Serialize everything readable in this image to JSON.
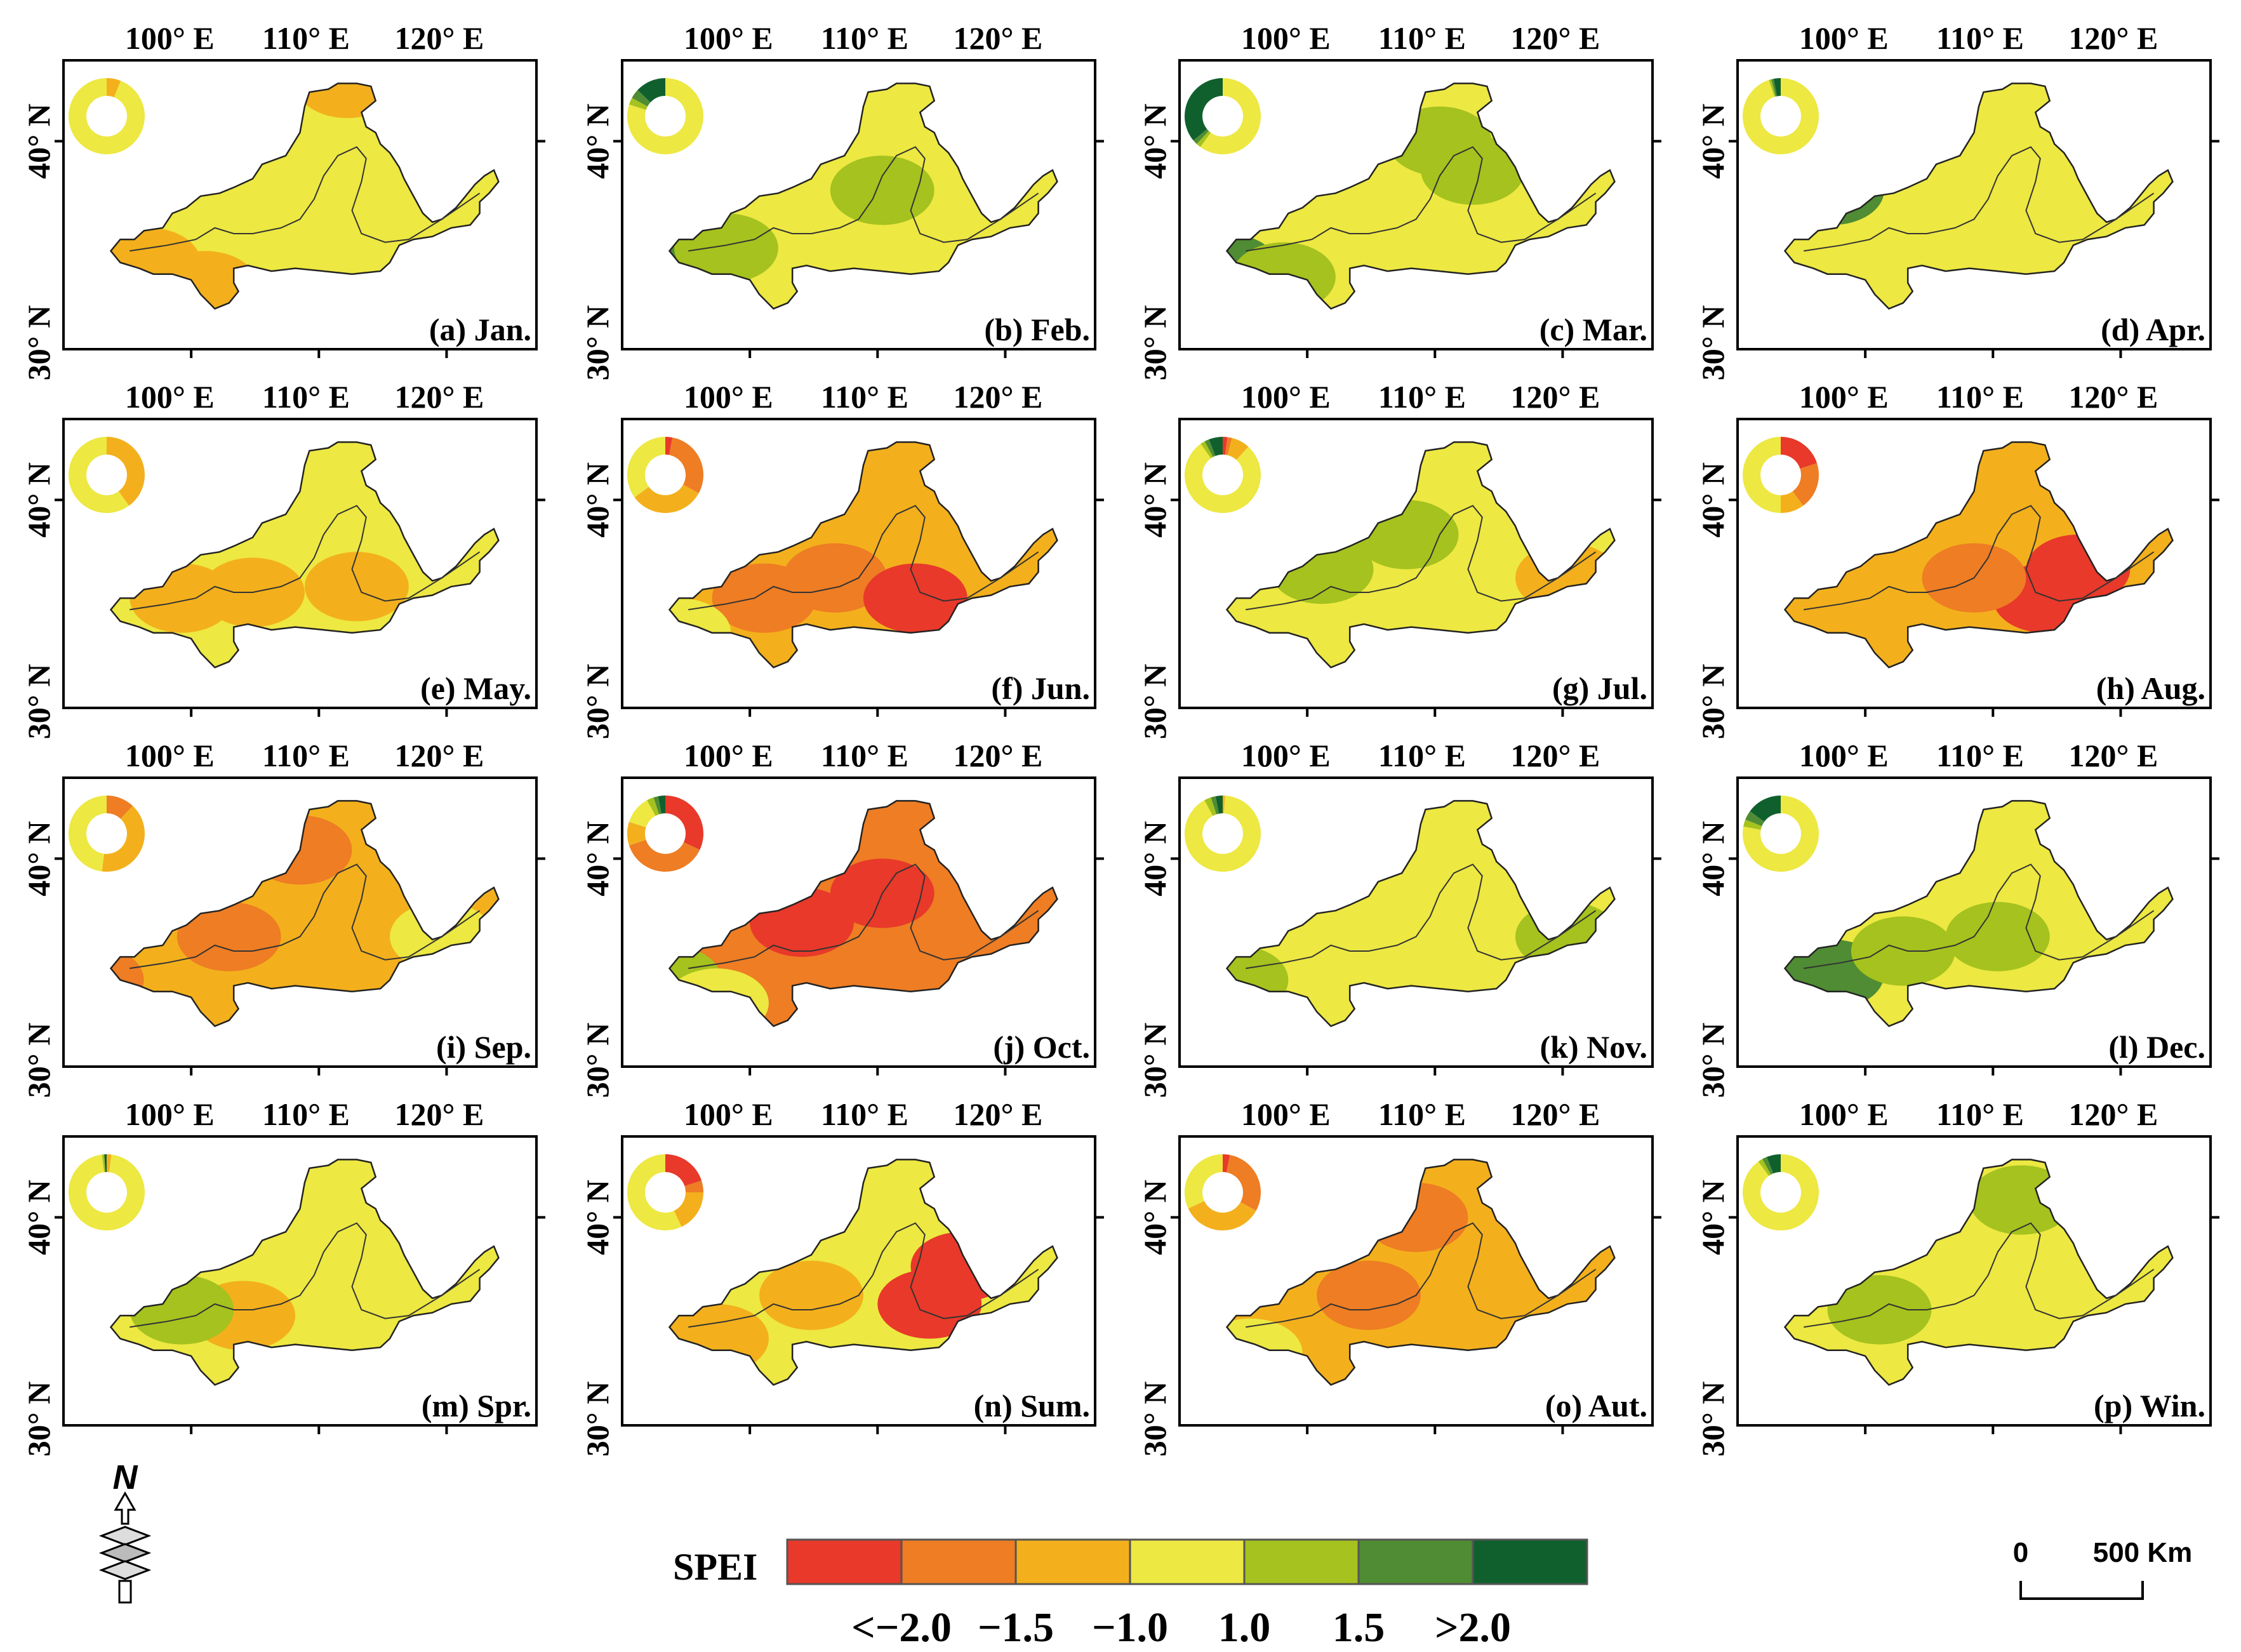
{
  "axes": {
    "lon_labels": [
      "100° E",
      "110° E",
      "120° E"
    ],
    "lat_labels": [
      "40° N",
      "30° N"
    ]
  },
  "panels": [
    {
      "label": "(a) Jan.",
      "ring": [
        0,
        0,
        0.06,
        0.94,
        0,
        0,
        0
      ],
      "map": {
        "base": "normal",
        "spots": [
          {
            "c": "moderate",
            "w": [
              0.18,
              0.7
            ]
          },
          {
            "c": "moderate",
            "w": [
              0.6,
              0.08
            ]
          },
          {
            "c": "moderate",
            "w": [
              0.3,
              0.78
            ]
          }
        ]
      }
    },
    {
      "label": "(b) Feb.",
      "ring": [
        0,
        0,
        0,
        0.8,
        0.03,
        0.04,
        0.13
      ],
      "map": {
        "base": "normal",
        "spots": [
          {
            "c": "extreme_wet",
            "w": [
              0.08,
              0.7
            ]
          },
          {
            "c": "severe_wet",
            "w": [
              0.15,
              0.72
            ]
          },
          {
            "c": "moderate_wet",
            "w": [
              0.22,
              0.65
            ]
          },
          {
            "c": "moderate_wet",
            "w": [
              0.55,
              0.45
            ]
          }
        ]
      }
    },
    {
      "label": "(c) Mar.",
      "ring": [
        0,
        0,
        0,
        0.6,
        0.02,
        0.02,
        0.36
      ],
      "map": {
        "base": "normal",
        "spots": [
          {
            "c": "moderate_wet",
            "w": [
              0.55,
              0.28
            ]
          },
          {
            "c": "moderate_wet",
            "w": [
              0.62,
              0.38
            ]
          },
          {
            "c": "severe_wet",
            "w": [
              0.1,
              0.72
            ]
          },
          {
            "c": "moderate_wet",
            "w": [
              0.22,
              0.75
            ]
          }
        ]
      }
    },
    {
      "label": "(d) Apr.",
      "ring": [
        0,
        0,
        0,
        0.95,
        0.01,
        0.01,
        0.03
      ],
      "map": {
        "base": "normal",
        "spots": [
          {
            "c": "severe_wet",
            "w": [
              0.2,
              0.45
            ]
          }
        ]
      }
    },
    {
      "label": "(e) May.",
      "ring": [
        0,
        0,
        0.4,
        0.6,
        0,
        0,
        0
      ],
      "map": {
        "base": "normal",
        "spots": [
          {
            "c": "moderate",
            "w": [
              0.4,
              0.6
            ]
          },
          {
            "c": "moderate",
            "w": [
              0.62,
              0.58
            ]
          },
          {
            "c": "moderate",
            "w": [
              0.25,
              0.62
            ]
          }
        ]
      }
    },
    {
      "label": "(f) Jun.",
      "ring": [
        0.03,
        0.3,
        0.32,
        0.35,
        0,
        0,
        0
      ],
      "map": {
        "base": "moderate",
        "spots": [
          {
            "c": "severe",
            "w": [
              0.45,
              0.55
            ]
          },
          {
            "c": "extreme",
            "w": [
              0.62,
              0.62
            ]
          },
          {
            "c": "severe",
            "w": [
              0.3,
              0.62
            ]
          },
          {
            "c": "normal",
            "w": [
              0.12,
              0.74
            ]
          }
        ]
      }
    },
    {
      "label": "(g) Jul.",
      "ring": [
        0.02,
        0.02,
        0.08,
        0.8,
        0.02,
        0.02,
        0.06
      ],
      "map": {
        "base": "normal",
        "spots": [
          {
            "c": "moderate_wet",
            "w": [
              0.3,
              0.52
            ]
          },
          {
            "c": "moderate_wet",
            "w": [
              0.48,
              0.4
            ]
          },
          {
            "c": "moderate",
            "w": [
              0.82,
              0.55
            ]
          }
        ]
      }
    },
    {
      "label": "(h) Aug.",
      "ring": [
        0.2,
        0.2,
        0.1,
        0.5,
        0,
        0,
        0
      ],
      "map": {
        "base": "moderate",
        "spots": [
          {
            "c": "extreme",
            "w": [
              0.65,
              0.62
            ]
          },
          {
            "c": "extreme",
            "w": [
              0.72,
              0.52
            ]
          },
          {
            "c": "severe",
            "w": [
              0.5,
              0.55
            ]
          }
        ]
      }
    },
    {
      "label": "(i) Sep.",
      "ring": [
        0,
        0.12,
        0.4,
        0.48,
        0,
        0,
        0
      ],
      "map": {
        "base": "moderate",
        "spots": [
          {
            "c": "severe",
            "w": [
              0.5,
              0.25
            ]
          },
          {
            "c": "severe",
            "w": [
              0.35,
              0.55
            ]
          },
          {
            "c": "severe",
            "w": [
              0.06,
              0.7
            ]
          },
          {
            "c": "normal",
            "w": [
              0.8,
              0.55
            ]
          }
        ]
      }
    },
    {
      "label": "(j) Oct.",
      "ring": [
        0.32,
        0.38,
        0.1,
        0.12,
        0.03,
        0.02,
        0.03
      ],
      "map": {
        "base": "severe",
        "spots": [
          {
            "c": "extreme",
            "w": [
              0.55,
              0.4
            ]
          },
          {
            "c": "extreme",
            "w": [
              0.38,
              0.5
            ]
          },
          {
            "c": "moderate_wet",
            "w": [
              0.1,
              0.7
            ]
          },
          {
            "c": "normal",
            "w": [
              0.2,
              0.78
            ]
          }
        ]
      }
    },
    {
      "label": "(k) Nov.",
      "ring": [
        0,
        0,
        0.01,
        0.91,
        0.03,
        0.02,
        0.03
      ],
      "map": {
        "base": "normal",
        "spots": [
          {
            "c": "moderate_wet",
            "w": [
              0.12,
              0.7
            ]
          },
          {
            "c": "moderate_wet",
            "w": [
              0.82,
              0.55
            ]
          }
        ]
      }
    },
    {
      "label": "(l) Dec.",
      "ring": [
        0,
        0,
        0,
        0.78,
        0.03,
        0.04,
        0.15
      ],
      "map": {
        "base": "normal",
        "spots": [
          {
            "c": "extreme_wet",
            "w": [
              0.1,
              0.72
            ]
          },
          {
            "c": "severe_wet",
            "w": [
              0.2,
              0.68
            ]
          },
          {
            "c": "moderate_wet",
            "w": [
              0.35,
              0.6
            ]
          },
          {
            "c": "moderate_wet",
            "w": [
              0.55,
              0.55
            ]
          }
        ]
      }
    },
    {
      "label": "(m) Spr.",
      "ring": [
        0,
        0,
        0.02,
        0.96,
        0.01,
        0,
        0.01
      ],
      "map": {
        "base": "normal",
        "spots": [
          {
            "c": "moderate",
            "w": [
              0.38,
              0.62
            ]
          },
          {
            "c": "moderate_wet",
            "w": [
              0.25,
              0.6
            ]
          }
        ]
      }
    },
    {
      "label": "(n) Sum.",
      "ring": [
        0.2,
        0.05,
        0.18,
        0.57,
        0,
        0,
        0
      ],
      "map": {
        "base": "normal",
        "spots": [
          {
            "c": "extreme",
            "w": [
              0.65,
              0.58
            ]
          },
          {
            "c": "extreme",
            "w": [
              0.72,
              0.45
            ]
          },
          {
            "c": "moderate",
            "w": [
              0.4,
              0.55
            ]
          },
          {
            "c": "moderate",
            "w": [
              0.2,
              0.7
            ]
          }
        ]
      }
    },
    {
      "label": "(o) Aut.",
      "ring": [
        0.03,
        0.3,
        0.35,
        0.32,
        0,
        0,
        0
      ],
      "map": {
        "base": "moderate",
        "spots": [
          {
            "c": "severe",
            "w": [
              0.5,
              0.28
            ]
          },
          {
            "c": "severe",
            "w": [
              0.4,
              0.55
            ]
          },
          {
            "c": "normal",
            "w": [
              0.15,
              0.75
            ]
          }
        ]
      }
    },
    {
      "label": "(p) Win.",
      "ring": [
        0,
        0,
        0,
        0.9,
        0.02,
        0.02,
        0.06
      ],
      "map": {
        "base": "normal",
        "spots": [
          {
            "c": "moderate_wet",
            "w": [
              0.6,
              0.22
            ]
          },
          {
            "c": "moderate_wet",
            "w": [
              0.3,
              0.6
            ]
          }
        ]
      }
    }
  ],
  "legend": {
    "title": "SPEI",
    "classes": [
      {
        "key": "extreme",
        "color": "#e8392a"
      },
      {
        "key": "severe",
        "color": "#ee7d24"
      },
      {
        "key": "moderate",
        "color": "#f3b01c"
      },
      {
        "key": "normal",
        "color": "#ede842"
      },
      {
        "key": "moderate_wet",
        "color": "#a5c21e"
      },
      {
        "key": "severe_wet",
        "color": "#4f8c33"
      },
      {
        "key": "extreme_wet",
        "color": "#10602e"
      }
    ],
    "tick_labels": [
      "<−2.0",
      "−1.5",
      "−1.0",
      "1.0",
      "1.5",
      ">2.0"
    ]
  },
  "scale_bar": {
    "zero": "0",
    "distance": "500 Km"
  },
  "north_arrow": {
    "label": "N"
  }
}
